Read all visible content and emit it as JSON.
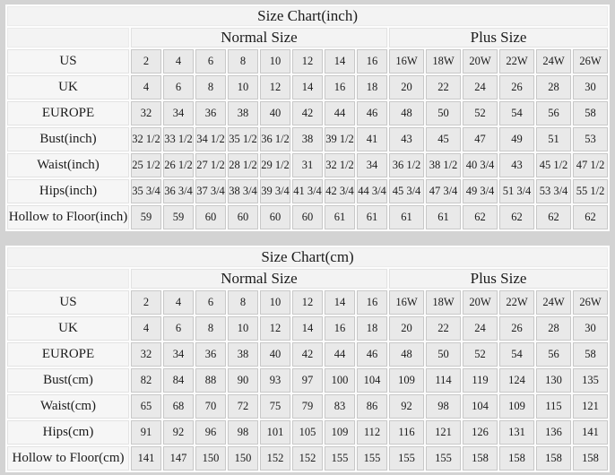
{
  "colors": {
    "page_bg": "#d3d3d3",
    "grid_gap_bg": "#fcfcfc",
    "header_bg": "#f3f3f3",
    "label_bg": "#f6f6f6",
    "cell_bg": "#e9e9e9",
    "cell_border": "#c8c8c8",
    "text": "#1b1b1b"
  },
  "chart_data": [
    {
      "type": "table",
      "title": "Size Chart(inch)",
      "column_groups": [
        {
          "label": "Normal Size",
          "span": 8
        },
        {
          "label": "Plus Size",
          "span": 6
        }
      ],
      "rows": [
        {
          "label": "US",
          "values": [
            "2",
            "4",
            "6",
            "8",
            "10",
            "12",
            "14",
            "16",
            "16W",
            "18W",
            "20W",
            "22W",
            "24W",
            "26W"
          ]
        },
        {
          "label": "UK",
          "values": [
            "4",
            "6",
            "8",
            "10",
            "12",
            "14",
            "16",
            "18",
            "20",
            "22",
            "24",
            "26",
            "28",
            "30"
          ]
        },
        {
          "label": "EUROPE",
          "values": [
            "32",
            "34",
            "36",
            "38",
            "40",
            "42",
            "44",
            "46",
            "48",
            "50",
            "52",
            "54",
            "56",
            "58"
          ]
        },
        {
          "label": "Bust(inch)",
          "values": [
            "32 1/2",
            "33 1/2",
            "34 1/2",
            "35 1/2",
            "36 1/2",
            "38",
            "39 1/2",
            "41",
            "43",
            "45",
            "47",
            "49",
            "51",
            "53"
          ]
        },
        {
          "label": "Waist(inch)",
          "values": [
            "25 1/2",
            "26 1/2",
            "27 1/2",
            "28 1/2",
            "29 1/2",
            "31",
            "32 1/2",
            "34",
            "36 1/2",
            "38 1/2",
            "40 3/4",
            "43",
            "45 1/2",
            "47 1/2"
          ]
        },
        {
          "label": "Hips(inch)",
          "values": [
            "35 3/4",
            "36 3/4",
            "37 3/4",
            "38 3/4",
            "39 3/4",
            "41 3/4",
            "42 3/4",
            "44 3/4",
            "45 3/4",
            "47 3/4",
            "49 3/4",
            "51 3/4",
            "53 3/4",
            "55 1/2"
          ]
        },
        {
          "label": "Hollow to Floor(inch)",
          "values": [
            "59",
            "59",
            "60",
            "60",
            "60",
            "60",
            "61",
            "61",
            "61",
            "61",
            "62",
            "62",
            "62",
            "62"
          ]
        }
      ]
    },
    {
      "type": "table",
      "title": "Size Chart(cm)",
      "column_groups": [
        {
          "label": "Normal Size",
          "span": 8
        },
        {
          "label": "Plus Size",
          "span": 6
        }
      ],
      "rows": [
        {
          "label": "US",
          "values": [
            "2",
            "4",
            "6",
            "8",
            "10",
            "12",
            "14",
            "16",
            "16W",
            "18W",
            "20W",
            "22W",
            "24W",
            "26W"
          ]
        },
        {
          "label": "UK",
          "values": [
            "4",
            "6",
            "8",
            "10",
            "12",
            "14",
            "16",
            "18",
            "20",
            "22",
            "24",
            "26",
            "28",
            "30"
          ]
        },
        {
          "label": "EUROPE",
          "values": [
            "32",
            "34",
            "36",
            "38",
            "40",
            "42",
            "44",
            "46",
            "48",
            "50",
            "52",
            "54",
            "56",
            "58"
          ]
        },
        {
          "label": "Bust(cm)",
          "values": [
            "82",
            "84",
            "88",
            "90",
            "93",
            "97",
            "100",
            "104",
            "109",
            "114",
            "119",
            "124",
            "130",
            "135"
          ]
        },
        {
          "label": "Waist(cm)",
          "values": [
            "65",
            "68",
            "70",
            "72",
            "75",
            "79",
            "83",
            "86",
            "92",
            "98",
            "104",
            "109",
            "115",
            "121"
          ]
        },
        {
          "label": "Hips(cm)",
          "values": [
            "91",
            "92",
            "96",
            "98",
            "101",
            "105",
            "109",
            "112",
            "116",
            "121",
            "126",
            "131",
            "136",
            "141"
          ]
        },
        {
          "label": "Hollow to Floor(cm)",
          "values": [
            "141",
            "147",
            "150",
            "150",
            "152",
            "152",
            "155",
            "155",
            "155",
            "155",
            "158",
            "158",
            "158",
            "158"
          ]
        }
      ]
    }
  ]
}
